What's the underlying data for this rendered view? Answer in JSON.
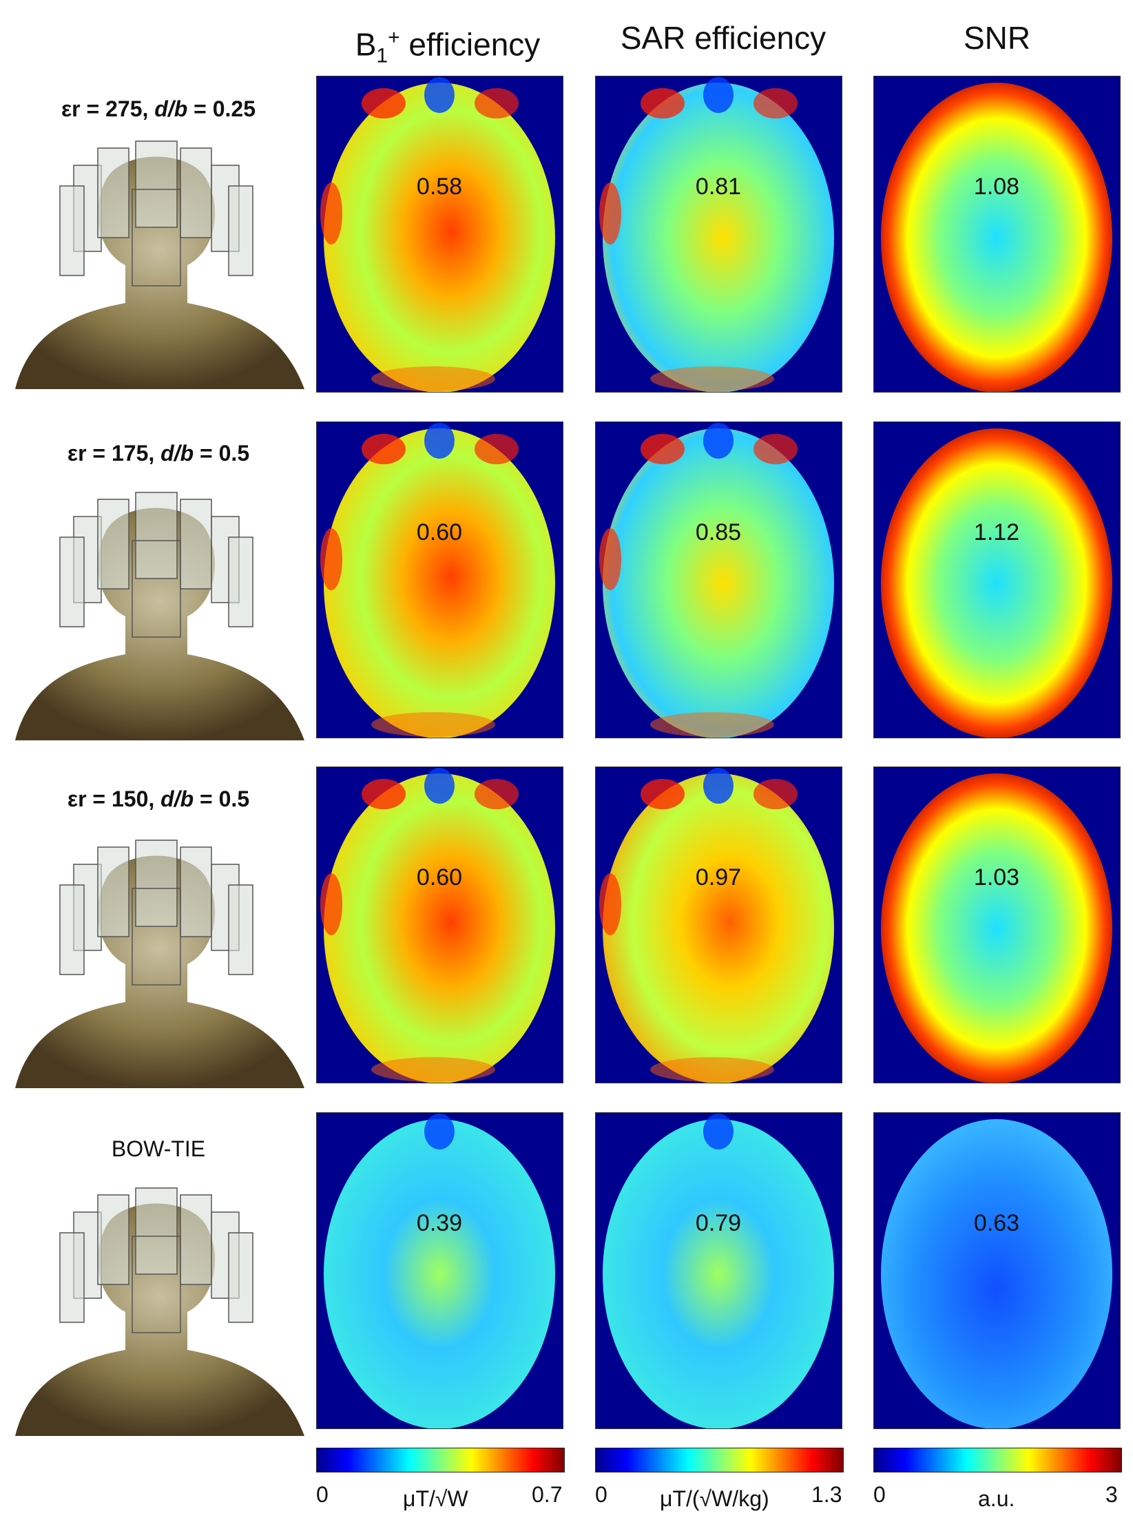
{
  "columns": {
    "b1": {
      "title_main": "B",
      "title_sub": "1",
      "title_sup": "+",
      "title_rest": " efficiency"
    },
    "sar": {
      "title": "SAR efficiency"
    },
    "snr": {
      "title": "SNR"
    }
  },
  "rows": [
    {
      "label_prefix": "εr = 275, ",
      "label_ital": "d/b",
      "label_suffix": " = 0.25",
      "b1": "0.58",
      "sar": "0.81",
      "snr": "1.08"
    },
    {
      "label_prefix": "εr = 175, ",
      "label_ital": "d/b",
      "label_suffix": " = 0.5",
      "b1": "0.60",
      "sar": "0.85",
      "snr": "1.12"
    },
    {
      "label_prefix": "εr = 150, ",
      "label_ital": "d/b",
      "label_suffix": " = 0.5",
      "b1": "0.60",
      "sar": "0.97",
      "snr": "1.03"
    },
    {
      "label_prefix": "BOW-TIE",
      "label_ital": "",
      "label_suffix": "",
      "b1": "0.39",
      "sar": "0.79",
      "snr": "0.63"
    }
  ],
  "colorbars": {
    "b1": {
      "min": "0",
      "unit": "μT/√W",
      "max": "0.7"
    },
    "sar": {
      "min": "0",
      "unit": "μT/(√W/kg)",
      "max": "1.3"
    },
    "snr": {
      "min": "0",
      "unit": "a.u.",
      "max": "3"
    }
  },
  "colors": {
    "background_map": "#00008f",
    "jet": [
      "#00008f",
      "#0000ff",
      "#00ffff",
      "#ffff00",
      "#ff0000",
      "#800000"
    ]
  }
}
